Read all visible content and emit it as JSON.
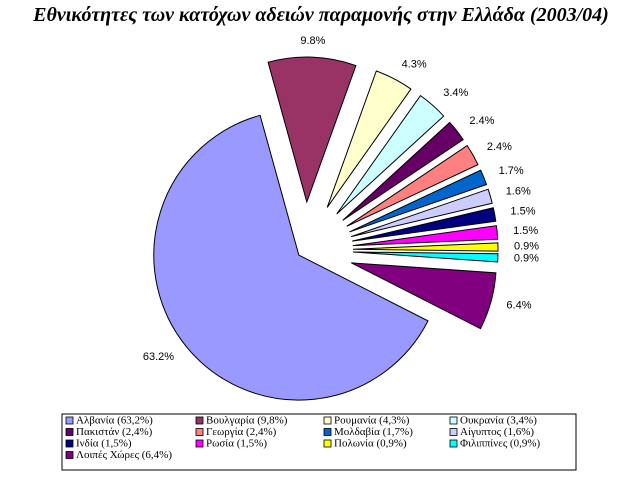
{
  "chart_data": {
    "type": "pie",
    "title": "Εθνικότητες των κατόχων αδειών παραμονής στην Ελλάδα (2003/04)",
    "categories": [
      "Αλβανία (63,2%)",
      "Βουλγαρία (9,8%)",
      "Ρουμανία (4,3%)",
      "Ουκρανία (3,4%)",
      "Πακιστάν (2,4%)",
      "Γεωργία (2,4%)",
      "Μολδαβία (1,7%)",
      "Αίγυπτος (1,6%)",
      "Ινδία (1,5%)",
      "Ρωσία (1,5%)",
      "Πολωνία (0,9%)",
      "Φιλιππίνες (0,9%)",
      "Λοιπές Χώρες (6,4%)"
    ],
    "values": [
      63.2,
      9.8,
      4.3,
      3.4,
      2.4,
      2.4,
      1.7,
      1.6,
      1.5,
      1.5,
      0.9,
      0.9,
      6.4
    ],
    "value_labels": [
      "63.2%",
      "9.8%",
      "4.3%",
      "3.4%",
      "2.4%",
      "2.4%",
      "1.7%",
      "1.6%",
      "1.5%",
      "1.5%",
      "0.9%",
      "0.9%",
      "6.4%"
    ],
    "colors": [
      "#9999ff",
      "#993366",
      "#ffffcc",
      "#ccffff",
      "#660066",
      "#ff8080",
      "#0066cc",
      "#ccccff",
      "#000080",
      "#ff00ff",
      "#ffff00",
      "#00ffff",
      "#800080"
    ],
    "legend": "bottom"
  }
}
